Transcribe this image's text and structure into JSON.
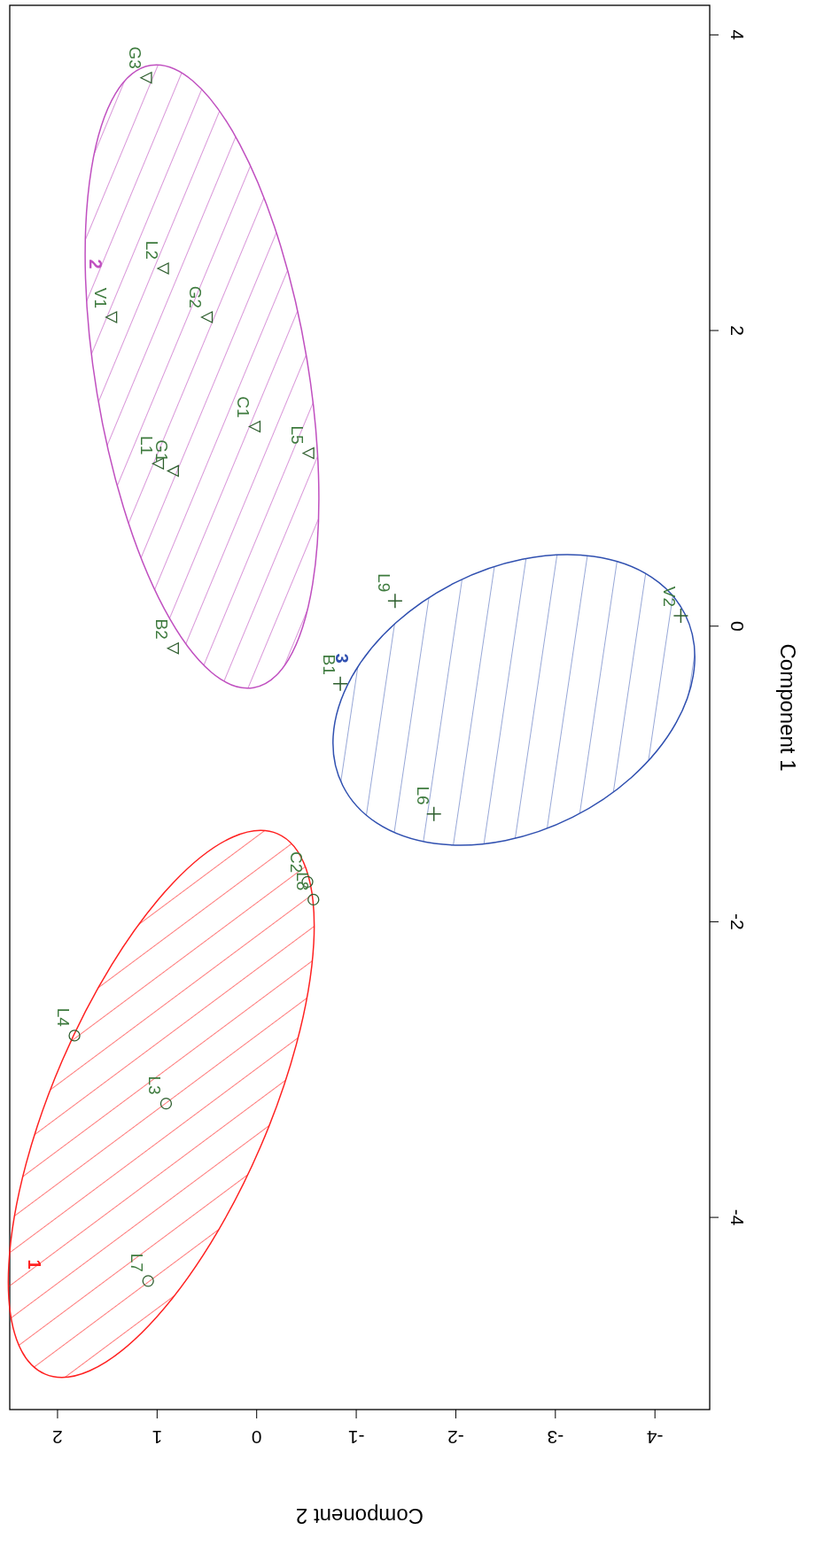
{
  "chart_data": {
    "type": "scatter",
    "xlabel": "Component 2",
    "ylabel": "Component 1",
    "xlim": [
      2.48,
      -4.55
    ],
    "xticks": [
      2,
      1,
      0,
      -1,
      -2,
      -3,
      -4
    ],
    "ylim": [
      -5.3,
      4.2
    ],
    "yticks": [
      -4,
      -2,
      0,
      2,
      4
    ],
    "grid": false,
    "series": [
      {
        "type": "scatter",
        "color": "#2e5e2e",
        "marker": "circle",
        "x": [
          -0.51,
          -0.57,
          1.83,
          0.91,
          1.09
        ],
        "values": [
          -1.73,
          -1.85,
          -2.77,
          -3.23,
          -4.43
        ]
      },
      {
        "type": "scatter",
        "color": "#2e5e2e",
        "marker": "triangle",
        "x": [
          1.11,
          0.94,
          1.46,
          0.5,
          0.02,
          0.99,
          0.84,
          -0.52,
          0.84
        ],
        "values": [
          3.71,
          2.42,
          2.09,
          2.09,
          1.35,
          1.1,
          1.05,
          1.17,
          -0.15
        ]
      },
      {
        "type": "scatter",
        "color": "#2e5e2e",
        "marker": "cross",
        "x": [
          -1.39,
          -4.26,
          -0.84,
          -1.78
        ],
        "values": [
          0.17,
          0.07,
          -0.39,
          -1.27
        ]
      }
    ],
    "annotations": [
      {
        "text": "C2",
        "x": -0.51,
        "y": -1.73
      },
      {
        "text": "L8",
        "x": -0.57,
        "y": -1.85
      },
      {
        "text": "L4",
        "x": 1.83,
        "y": -2.77
      },
      {
        "text": "L3",
        "x": 0.91,
        "y": -3.23
      },
      {
        "text": "L7",
        "x": 1.09,
        "y": -4.43
      },
      {
        "text": "G3",
        "x": 1.11,
        "y": 3.71
      },
      {
        "text": "L2",
        "x": 0.94,
        "y": 2.42
      },
      {
        "text": "V1",
        "x": 1.46,
        "y": 2.09
      },
      {
        "text": "G2",
        "x": 0.5,
        "y": 2.09
      },
      {
        "text": "C1",
        "x": 0.02,
        "y": 1.35
      },
      {
        "text": "L1",
        "x": 0.99,
        "y": 1.1
      },
      {
        "text": "G1",
        "x": 0.84,
        "y": 1.05
      },
      {
        "text": "L5",
        "x": -0.52,
        "y": 1.17
      },
      {
        "text": "B2",
        "x": 0.84,
        "y": -0.15
      },
      {
        "text": "L9",
        "x": -1.39,
        "y": 0.17
      },
      {
        "text": "V2",
        "x": -4.26,
        "y": 0.07
      },
      {
        "text": "B1",
        "x": -0.84,
        "y": -0.39
      },
      {
        "text": "L6",
        "x": -1.78,
        "y": -1.27
      },
      "1",
      "2",
      "3"
    ]
  }
}
